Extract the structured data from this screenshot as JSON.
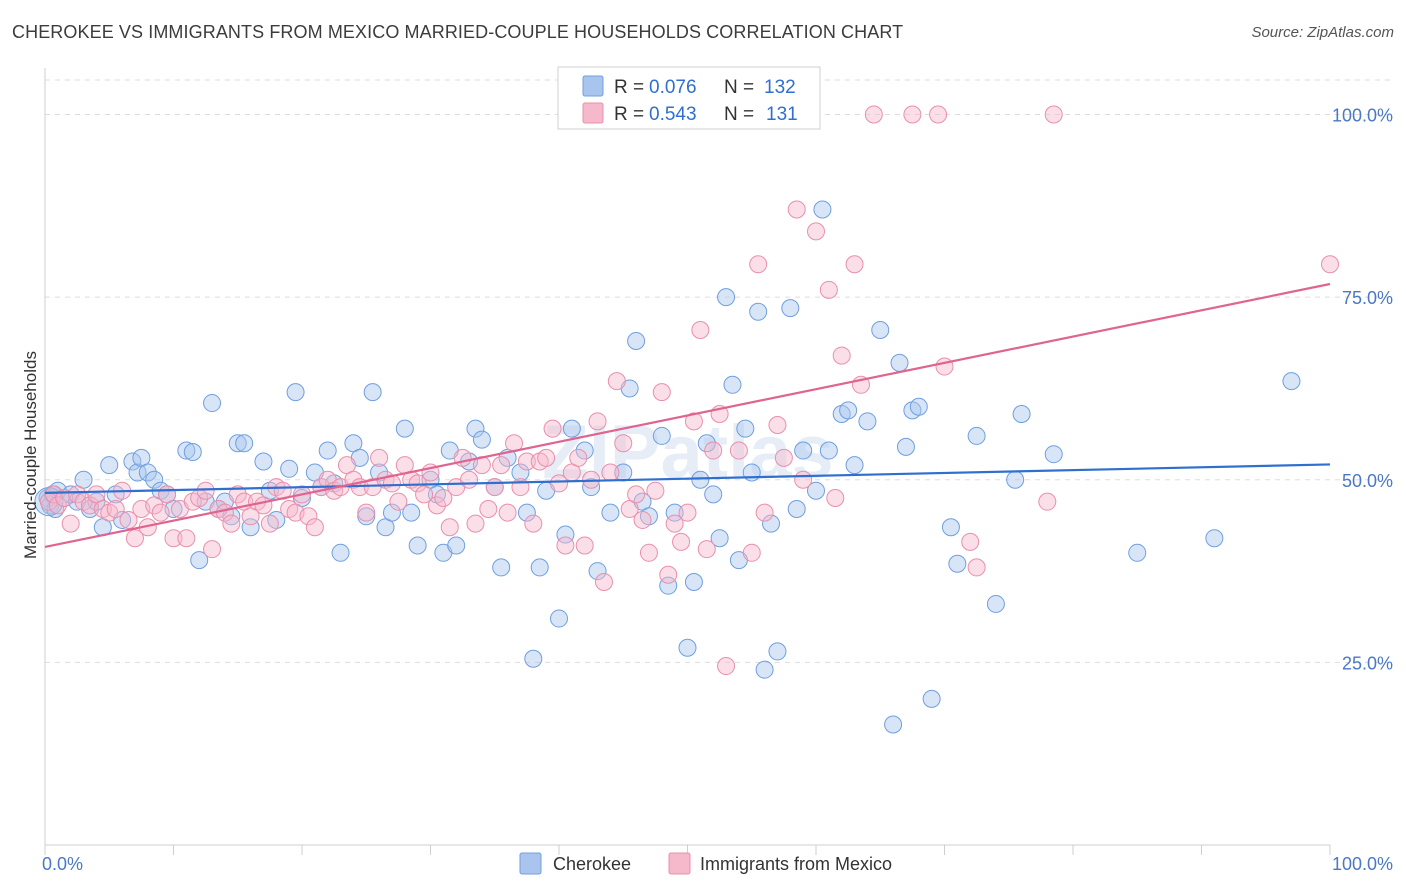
{
  "title": "CHEROKEE VS IMMIGRANTS FROM MEXICO MARRIED-COUPLE HOUSEHOLDS CORRELATION CHART",
  "source": "Source: ZipAtlas.com",
  "watermark": "ZIPatlas",
  "colors": {
    "series1_fill": "#a9c5ee",
    "series1_stroke": "#6f9fe0",
    "series1_line": "#2f6fd0",
    "series2_fill": "#f6b9cc",
    "series2_stroke": "#ea8fab",
    "series2_line": "#e06490",
    "grid": "#dddddd",
    "tick_label": "#4a78c8"
  },
  "legend": {
    "rows": [
      {
        "r_label": "R =",
        "r_value": "0.076",
        "n_label": "N =",
        "n_value": "132"
      },
      {
        "r_label": "R =",
        "r_value": "0.543",
        "n_label": "N =",
        "n_value": "131"
      }
    ]
  },
  "chart_data": {
    "type": "scatter",
    "title": "CHEROKEE VS IMMIGRANTS FROM MEXICO MARRIED-COUPLE HOUSEHOLDS CORRELATION CHART",
    "xlabel": "",
    "ylabel": "Married-couple Households",
    "xlim": [
      0,
      100
    ],
    "ylim": [
      0,
      105
    ],
    "x_tick_labels": [
      "0.0%",
      "100.0%"
    ],
    "y_ticks": [
      25,
      50,
      75,
      100
    ],
    "y_tick_labels": [
      "25.0%",
      "50.0%",
      "75.0%",
      "100.0%"
    ],
    "grid": true,
    "legend_position": "top-center",
    "series": [
      {
        "name": "Cherokee",
        "r": 0.076,
        "n": 132,
        "trend": {
          "x": [
            0,
            100
          ],
          "y": [
            48.2,
            52.1
          ]
        },
        "points": [
          [
            0.2,
            47.5
          ],
          [
            0.4,
            46.5
          ],
          [
            0.6,
            48
          ],
          [
            0.8,
            46
          ],
          [
            1,
            48.5
          ],
          [
            1.5,
            47.5
          ],
          [
            2,
            48
          ],
          [
            2.5,
            47
          ],
          [
            3,
            50
          ],
          [
            3.5,
            46
          ],
          [
            4,
            47
          ],
          [
            4.5,
            43.5
          ],
          [
            5,
            52
          ],
          [
            5.5,
            48
          ],
          [
            6,
            44.5
          ],
          [
            6.8,
            52.5
          ],
          [
            7.2,
            51
          ],
          [
            7.5,
            53
          ],
          [
            8,
            51
          ],
          [
            8.5,
            50
          ],
          [
            9,
            48.5
          ],
          [
            9.5,
            48
          ],
          [
            10,
            46
          ],
          [
            11,
            54
          ],
          [
            11.5,
            53.8
          ],
          [
            12,
            39
          ],
          [
            12.5,
            47
          ],
          [
            13,
            60.5
          ],
          [
            13.5,
            46
          ],
          [
            14,
            47
          ],
          [
            14.5,
            45
          ],
          [
            15,
            55
          ],
          [
            15.5,
            55
          ],
          [
            16,
            43.5
          ],
          [
            17,
            52.5
          ],
          [
            17.5,
            48.5
          ],
          [
            18,
            44.5
          ],
          [
            19,
            51.5
          ],
          [
            19.5,
            62
          ],
          [
            20,
            47.5
          ],
          [
            21,
            51
          ],
          [
            21.5,
            49
          ],
          [
            22,
            54
          ],
          [
            22.5,
            49.5
          ],
          [
            23,
            40
          ],
          [
            24,
            55
          ],
          [
            24.5,
            53
          ],
          [
            25,
            45
          ],
          [
            25.5,
            62
          ],
          [
            26,
            51
          ],
          [
            26.5,
            43.5
          ],
          [
            27,
            45.5
          ],
          [
            28,
            57
          ],
          [
            28.5,
            45.5
          ],
          [
            29,
            41
          ],
          [
            30,
            50
          ],
          [
            30.5,
            48
          ],
          [
            31,
            40
          ],
          [
            31.5,
            54
          ],
          [
            32,
            41
          ],
          [
            33,
            52.5
          ],
          [
            33.5,
            57
          ],
          [
            34,
            55.5
          ],
          [
            35,
            49
          ],
          [
            35.5,
            38
          ],
          [
            36,
            53
          ],
          [
            37,
            51
          ],
          [
            37.5,
            45.5
          ],
          [
            38,
            25.5
          ],
          [
            38.5,
            38
          ],
          [
            39,
            48.5
          ],
          [
            40,
            31
          ],
          [
            40.5,
            42.5
          ],
          [
            41,
            57
          ],
          [
            42,
            54
          ],
          [
            42.5,
            49
          ],
          [
            43,
            37.5
          ],
          [
            44,
            45.5
          ],
          [
            45,
            51
          ],
          [
            45.5,
            62.5
          ],
          [
            46,
            69
          ],
          [
            46.5,
            47
          ],
          [
            47,
            45
          ],
          [
            48,
            56
          ],
          [
            48.5,
            35.5
          ],
          [
            49,
            45.5
          ],
          [
            50,
            27
          ],
          [
            50.5,
            36
          ],
          [
            51,
            50
          ],
          [
            51.5,
            55
          ],
          [
            52,
            48
          ],
          [
            52.5,
            42
          ],
          [
            53,
            75
          ],
          [
            53.5,
            63
          ],
          [
            54,
            39
          ],
          [
            54.5,
            57
          ],
          [
            55,
            51
          ],
          [
            55.5,
            73
          ],
          [
            56,
            24
          ],
          [
            56.5,
            44
          ],
          [
            57,
            26.5
          ],
          [
            58,
            73.5
          ],
          [
            58.5,
            46
          ],
          [
            59,
            54
          ],
          [
            60,
            48.5
          ],
          [
            60.5,
            87
          ],
          [
            61,
            54
          ],
          [
            62,
            59
          ],
          [
            62.5,
            59.5
          ],
          [
            63,
            52
          ],
          [
            64,
            58
          ],
          [
            65,
            70.5
          ],
          [
            66,
            16.5
          ],
          [
            66.5,
            66
          ],
          [
            67,
            54.5
          ],
          [
            67.5,
            59.5
          ],
          [
            68,
            60
          ],
          [
            69,
            20
          ],
          [
            70.5,
            43.5
          ],
          [
            71,
            38.5
          ],
          [
            72.5,
            56
          ],
          [
            74,
            33
          ],
          [
            75.5,
            50
          ],
          [
            76,
            59
          ],
          [
            78.5,
            53.5
          ],
          [
            85,
            40
          ],
          [
            91,
            42
          ],
          [
            97,
            63.5
          ]
        ]
      },
      {
        "name": "Immigrants from Mexico",
        "r": 0.543,
        "n": 131,
        "trend": {
          "x": [
            0,
            100
          ],
          "y": [
            40.8,
            76.8
          ]
        },
        "points": [
          [
            0.3,
            47
          ],
          [
            0.7,
            48
          ],
          [
            1,
            46.5
          ],
          [
            1.5,
            47.5
          ],
          [
            2,
            44
          ],
          [
            2.5,
            48
          ],
          [
            3,
            47
          ],
          [
            3.5,
            46.5
          ],
          [
            4,
            48
          ],
          [
            4.5,
            46
          ],
          [
            5,
            45.5
          ],
          [
            5.5,
            46
          ],
          [
            6,
            48.5
          ],
          [
            6.5,
            44.5
          ],
          [
            7,
            42
          ],
          [
            7.5,
            46
          ],
          [
            8,
            43.5
          ],
          [
            8.5,
            46.5
          ],
          [
            9,
            45.5
          ],
          [
            9.5,
            48
          ],
          [
            10,
            42
          ],
          [
            10.5,
            46
          ],
          [
            11,
            42
          ],
          [
            11.5,
            47
          ],
          [
            12,
            47.5
          ],
          [
            12.5,
            48.5
          ],
          [
            13,
            40.5
          ],
          [
            13.5,
            46
          ],
          [
            14,
            45.5
          ],
          [
            14.5,
            44
          ],
          [
            15,
            48
          ],
          [
            15.5,
            47
          ],
          [
            16,
            45
          ],
          [
            16.5,
            47
          ],
          [
            17,
            46.5
          ],
          [
            17.5,
            44
          ],
          [
            18,
            49
          ],
          [
            18.5,
            48.5
          ],
          [
            19,
            46
          ],
          [
            19.5,
            45.5
          ],
          [
            20,
            48
          ],
          [
            20.5,
            45
          ],
          [
            21,
            43.5
          ],
          [
            21.5,
            49
          ],
          [
            22,
            50
          ],
          [
            22.5,
            48.5
          ],
          [
            23,
            49
          ],
          [
            23.5,
            52
          ],
          [
            24,
            50
          ],
          [
            24.5,
            49
          ],
          [
            25,
            45.5
          ],
          [
            25.5,
            49
          ],
          [
            26,
            53
          ],
          [
            26.5,
            50
          ],
          [
            27,
            49.5
          ],
          [
            27.5,
            47
          ],
          [
            28,
            52
          ],
          [
            28.5,
            50
          ],
          [
            29,
            49.5
          ],
          [
            29.5,
            48
          ],
          [
            30,
            51
          ],
          [
            30.5,
            46.5
          ],
          [
            31,
            47.5
          ],
          [
            31.5,
            43.5
          ],
          [
            32,
            49
          ],
          [
            32.5,
            53
          ],
          [
            33,
            50
          ],
          [
            33.5,
            44
          ],
          [
            34,
            52
          ],
          [
            34.5,
            46
          ],
          [
            35,
            49
          ],
          [
            35.5,
            52
          ],
          [
            36,
            45.5
          ],
          [
            36.5,
            55
          ],
          [
            37,
            49
          ],
          [
            37.5,
            52.5
          ],
          [
            38,
            44
          ],
          [
            38.5,
            52.5
          ],
          [
            39,
            53
          ],
          [
            39.5,
            57
          ],
          [
            40,
            49.5
          ],
          [
            40.5,
            41
          ],
          [
            41,
            51
          ],
          [
            41.5,
            53
          ],
          [
            42,
            41
          ],
          [
            42.5,
            50
          ],
          [
            43,
            58
          ],
          [
            43.5,
            36
          ],
          [
            44,
            51
          ],
          [
            44.5,
            63.5
          ],
          [
            45,
            55
          ],
          [
            45.5,
            46
          ],
          [
            46,
            48
          ],
          [
            46.5,
            44.5
          ],
          [
            47,
            40
          ],
          [
            47.5,
            48.5
          ],
          [
            48,
            62
          ],
          [
            48.5,
            37
          ],
          [
            49,
            44
          ],
          [
            49.5,
            41.5
          ],
          [
            50,
            45.5
          ],
          [
            50.5,
            58
          ],
          [
            51,
            70.5
          ],
          [
            51.5,
            40.5
          ],
          [
            52,
            54
          ],
          [
            52.5,
            59
          ],
          [
            53,
            24.5
          ],
          [
            54,
            54
          ],
          [
            55,
            40
          ],
          [
            55.5,
            79.5
          ],
          [
            56,
            45.5
          ],
          [
            57,
            57.5
          ],
          [
            57.5,
            53
          ],
          [
            58.5,
            87
          ],
          [
            59,
            50
          ],
          [
            60,
            84
          ],
          [
            61,
            76
          ],
          [
            61.5,
            47.5
          ],
          [
            62,
            67
          ],
          [
            63,
            79.5
          ],
          [
            63.5,
            63
          ],
          [
            64.5,
            100
          ],
          [
            67.5,
            100
          ],
          [
            69.5,
            100
          ],
          [
            70,
            65.5
          ],
          [
            72,
            41.5
          ],
          [
            72.5,
            38
          ],
          [
            78,
            47
          ],
          [
            78.5,
            100
          ],
          [
            100,
            79.5
          ]
        ]
      }
    ]
  }
}
